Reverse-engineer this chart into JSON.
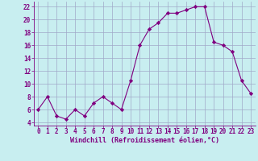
{
  "x": [
    0,
    1,
    2,
    3,
    4,
    5,
    6,
    7,
    8,
    9,
    10,
    11,
    12,
    13,
    14,
    15,
    16,
    17,
    18,
    19,
    20,
    21,
    22,
    23
  ],
  "y": [
    6,
    8,
    5,
    4.5,
    6,
    5,
    7,
    8,
    7,
    6,
    10.5,
    16,
    18.5,
    19.5,
    21,
    21,
    21.5,
    22,
    22,
    16.5,
    16,
    15,
    10.5,
    8.5
  ],
  "line_color": "#800080",
  "marker": "D",
  "marker_size": 2.2,
  "bg_color": "#c8eef0",
  "grid_color": "#a0a8c8",
  "xlabel": "Windchill (Refroidissement éolien,°C)",
  "xlabel_color": "#800080",
  "xlabel_fontsize": 6.0,
  "tick_color": "#800080",
  "tick_fontsize": 5.5,
  "ylim": [
    3.5,
    22.8
  ],
  "xlim": [
    -0.5,
    23.5
  ],
  "yticks": [
    4,
    6,
    8,
    10,
    12,
    14,
    16,
    18,
    20,
    22
  ],
  "xticks": [
    0,
    1,
    2,
    3,
    4,
    5,
    6,
    7,
    8,
    9,
    10,
    11,
    12,
    13,
    14,
    15,
    16,
    17,
    18,
    19,
    20,
    21,
    22,
    23
  ]
}
